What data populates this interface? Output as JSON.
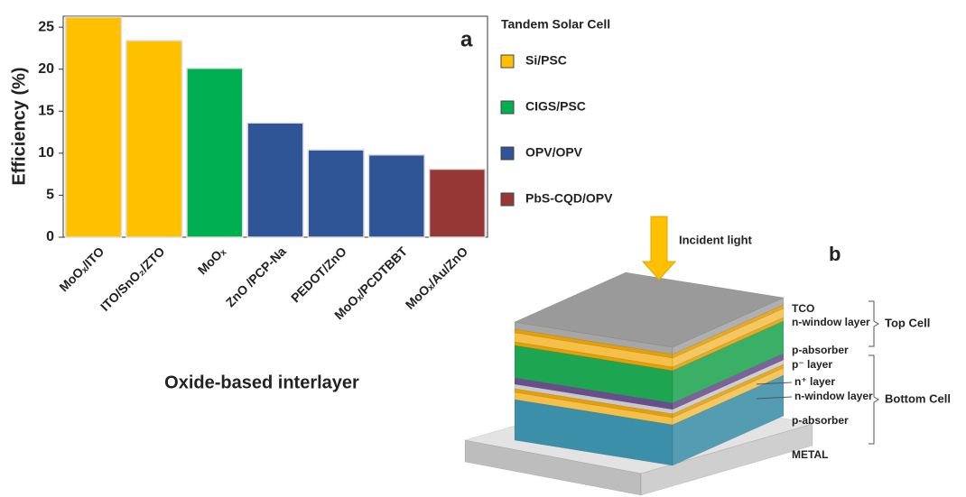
{
  "chart_data": {
    "type": "bar",
    "panel_label": "a",
    "xlabel": "Oxide-based interlayer",
    "ylabel": "Efficiency (%)",
    "categories": [
      "MoOₓ/ITO",
      "ITO/SnO₂/ZTO",
      "MoOₓ",
      "ZnO /PCP-Na",
      "PEDOT/ZnO",
      "MoOₓ/PCDTBBT",
      "MoOₓ/Au/ZnO"
    ],
    "legend_title": "Tandem Solar Cell",
    "series": [
      {
        "name": "Si/PSC",
        "color": "#ffc000",
        "values": [
          26.2,
          23.4,
          null,
          null,
          null,
          null,
          null
        ]
      },
      {
        "name": "CIGS/PSC",
        "color": "#00b050",
        "values": [
          null,
          null,
          20.1,
          null,
          null,
          null,
          null
        ]
      },
      {
        "name": "OPV/OPV",
        "color": "#2f5597",
        "values": [
          null,
          null,
          null,
          13.6,
          10.4,
          9.8,
          null
        ]
      },
      {
        "name": "PbS-CQD/OPV",
        "color": "#953735",
        "values": [
          null,
          null,
          null,
          null,
          null,
          null,
          8.1
        ]
      }
    ],
    "ylim": [
      0,
      26.3
    ],
    "yticks": [
      0,
      5,
      10,
      15,
      20,
      25
    ]
  },
  "diagram": {
    "label": "b",
    "light": "Incident light",
    "layers": [
      "TCO",
      "n-window layer",
      "p-absorber",
      "p⁻ layer",
      "n⁺ layer",
      "n-window layer",
      "p-absorber",
      "METAL"
    ],
    "groups": [
      "Top Cell",
      "Bottom Cell"
    ]
  }
}
